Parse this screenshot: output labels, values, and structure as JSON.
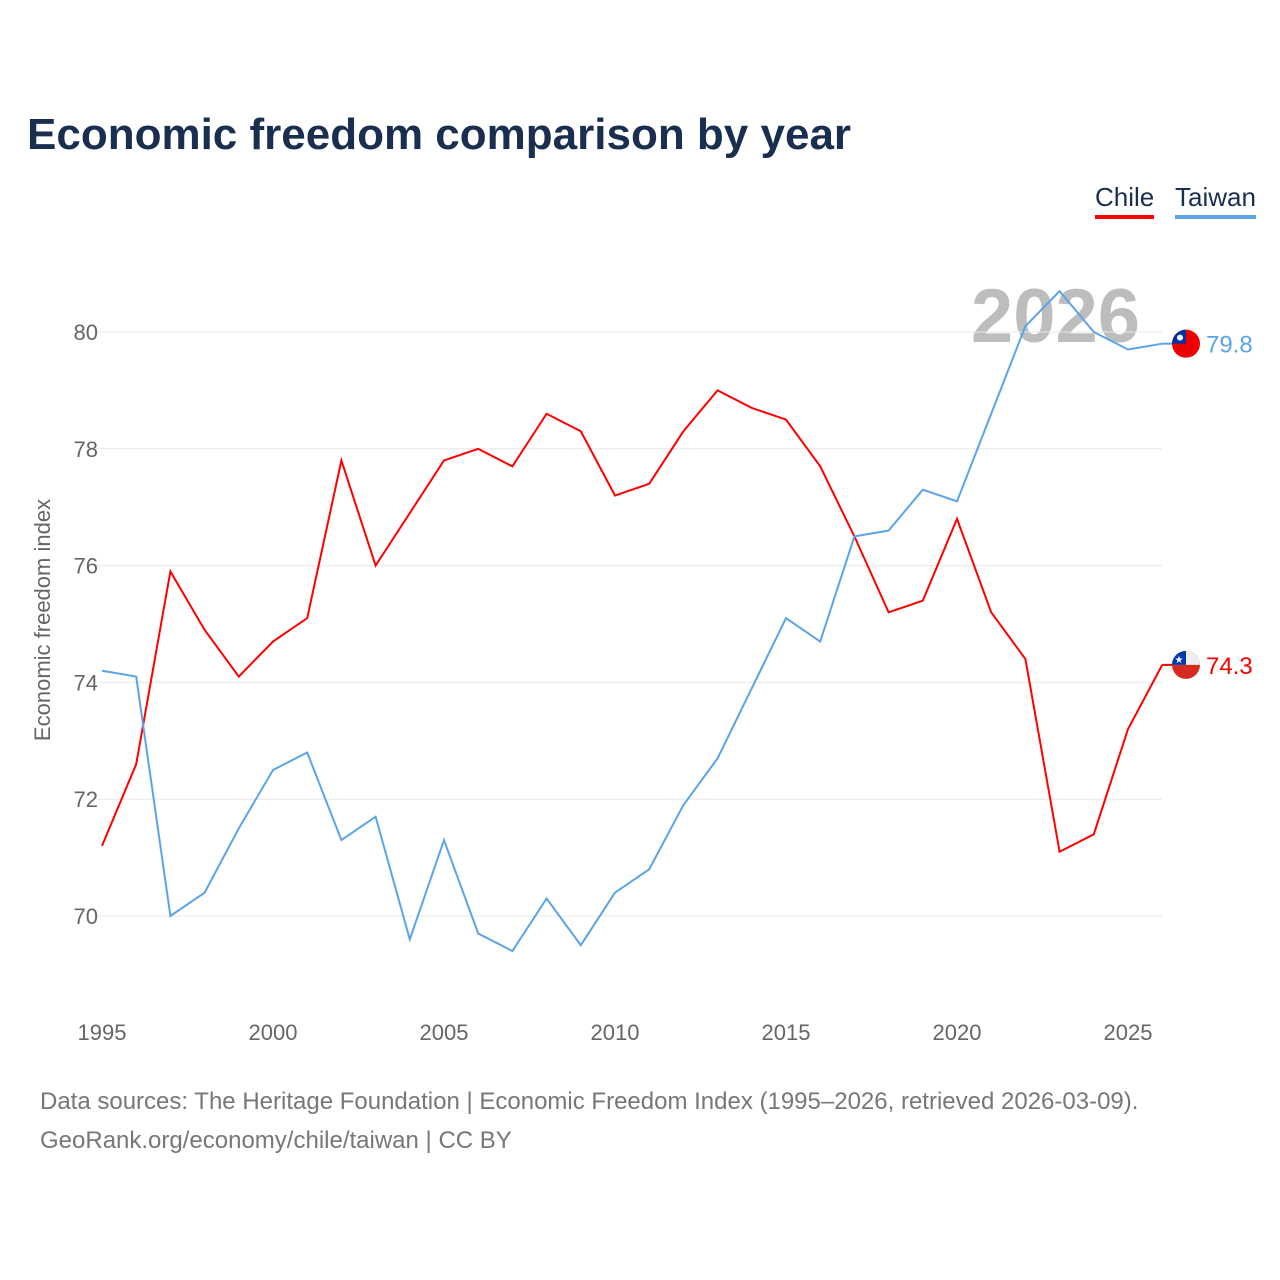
{
  "title": "Economic freedom comparison by year",
  "footer": {
    "line1": "Data sources: The Heritage Foundation | Economic Freedom Index (1995–2026, retrieved 2026-03-09).",
    "line2": "GeoRank.org/economy/chile/taiwan | CC BY"
  },
  "chart_data": {
    "type": "line",
    "title": "Economic freedom comparison by year",
    "xlabel": "",
    "ylabel": "Economic freedom index",
    "xlim": [
      1995,
      2026
    ],
    "ylim": [
      68.6,
      81.3
    ],
    "yticks": [
      70,
      72,
      74,
      76,
      78,
      80
    ],
    "xticks": [
      1995,
      2000,
      2005,
      2010,
      2015,
      2020,
      2025
    ],
    "grid": true,
    "legend_position": "top-right",
    "year_watermark": "2026",
    "x": [
      1995,
      1996,
      1997,
      1998,
      1999,
      2000,
      2001,
      2002,
      2003,
      2004,
      2005,
      2006,
      2007,
      2008,
      2009,
      2010,
      2011,
      2012,
      2013,
      2014,
      2015,
      2016,
      2017,
      2018,
      2019,
      2020,
      2021,
      2022,
      2023,
      2024,
      2025,
      2026
    ],
    "series": [
      {
        "name": "Chile",
        "color": "#ff0000",
        "end_label": "74.3",
        "values": [
          71.2,
          72.6,
          75.9,
          74.9,
          74.1,
          74.7,
          75.1,
          77.8,
          76.0,
          76.9,
          77.8,
          78.0,
          77.7,
          78.6,
          78.3,
          77.2,
          77.4,
          78.3,
          79.0,
          78.7,
          78.5,
          77.7,
          76.5,
          75.2,
          75.4,
          76.8,
          75.2,
          74.4,
          71.1,
          71.4,
          73.2,
          74.3
        ]
      },
      {
        "name": "Taiwan",
        "color": "#5ba4ea",
        "end_label": "79.8",
        "values": [
          74.2,
          74.1,
          70.0,
          70.4,
          71.5,
          72.5,
          72.8,
          71.3,
          71.7,
          69.6,
          71.3,
          69.7,
          69.4,
          70.3,
          69.5,
          70.4,
          70.8,
          71.9,
          72.7,
          73.9,
          75.1,
          74.7,
          76.5,
          76.6,
          77.3,
          77.1,
          78.6,
          80.1,
          80.7,
          80.0,
          79.7,
          79.8
        ]
      }
    ]
  }
}
